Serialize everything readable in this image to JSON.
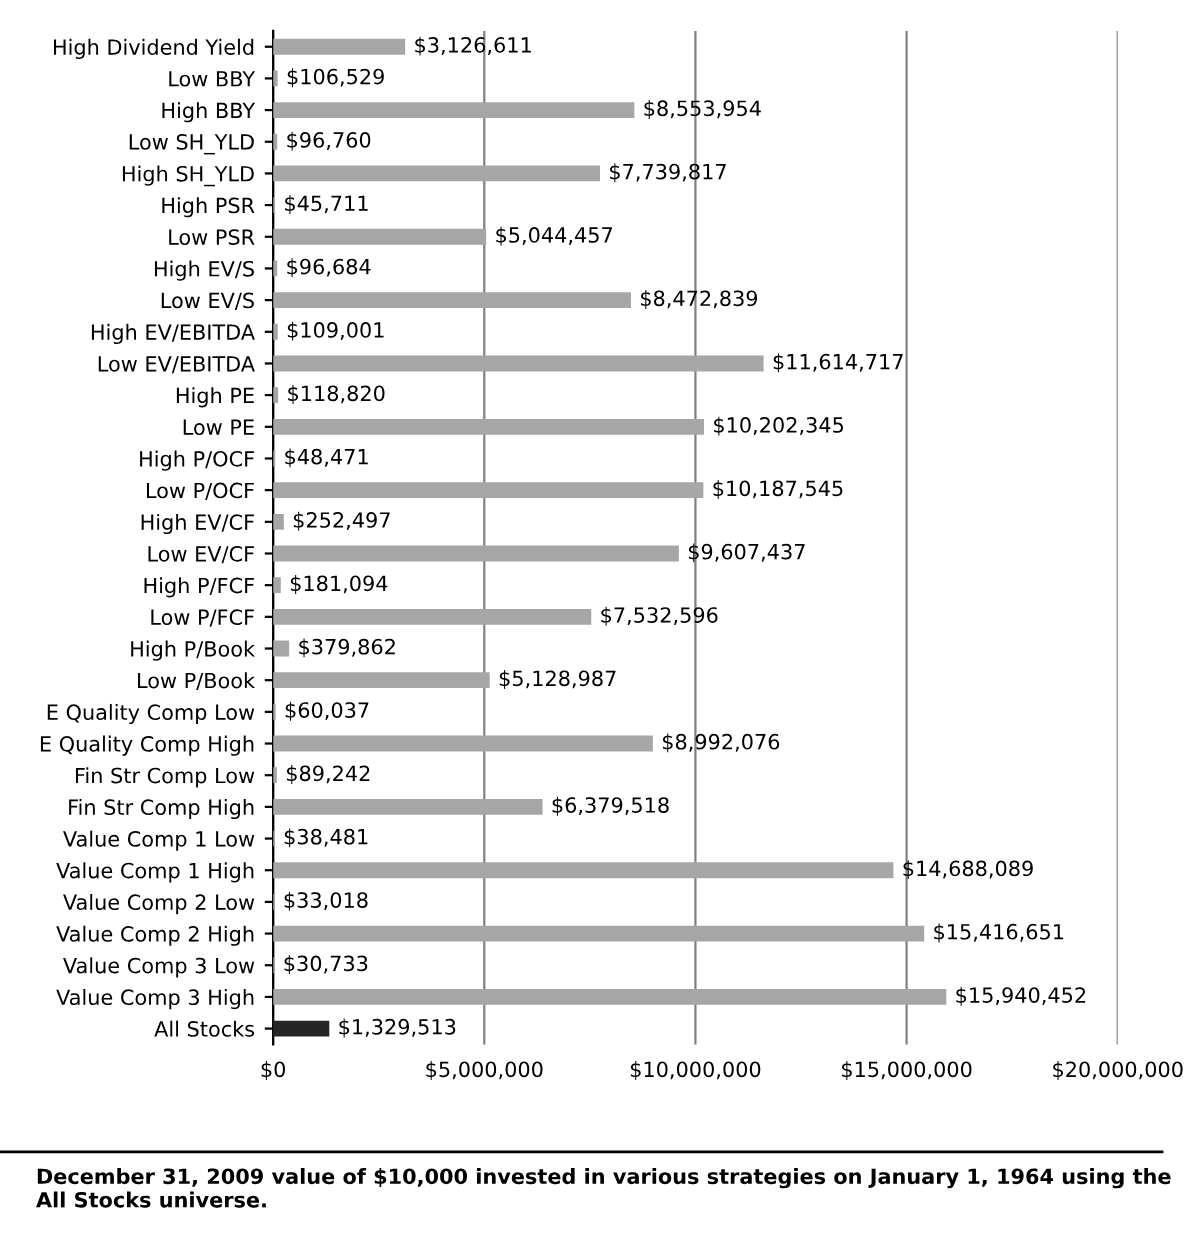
{
  "chart_data": {
    "type": "bar",
    "orientation": "horizontal",
    "categories": [
      "High Dividend Yield",
      "Low BBY",
      "High BBY",
      "Low SH_YLD",
      "High SH_YLD",
      "High PSR",
      "Low PSR",
      "High EV/S",
      "Low EV/S",
      "High EV/EBITDA",
      "Low EV/EBITDA",
      "High PE",
      "Low PE",
      "High P/OCF",
      "Low P/OCF",
      "High EV/CF",
      "Low EV/CF",
      "High P/FCF",
      "Low P/FCF",
      "High P/Book",
      "Low P/Book",
      "E Quality Comp Low",
      "E Quality Comp High",
      "Fin Str Comp Low",
      "Fin Str Comp High",
      "Value Comp 1 Low",
      "Value Comp 1 High",
      "Value Comp 2 Low",
      "Value Comp 2 High",
      "Value Comp 3 Low",
      "Value Comp 3 High",
      "All Stocks"
    ],
    "values": [
      3126611,
      106529,
      8553954,
      96760,
      7739817,
      45711,
      5044457,
      96684,
      8472839,
      109001,
      11614717,
      118820,
      10202345,
      48471,
      10187545,
      252497,
      9607437,
      181094,
      7532596,
      379862,
      5128987,
      60037,
      8992076,
      89242,
      6379518,
      38481,
      14688089,
      33018,
      15416651,
      30733,
      15940452,
      1329513
    ],
    "colors": [
      "#a6a6a6",
      "#a6a6a6",
      "#a6a6a6",
      "#a6a6a6",
      "#a6a6a6",
      "#a6a6a6",
      "#a6a6a6",
      "#a6a6a6",
      "#a6a6a6",
      "#a6a6a6",
      "#a6a6a6",
      "#a6a6a6",
      "#a6a6a6",
      "#a6a6a6",
      "#a6a6a6",
      "#a6a6a6",
      "#a6a6a6",
      "#a6a6a6",
      "#a6a6a6",
      "#a6a6a6",
      "#a6a6a6",
      "#a6a6a6",
      "#a6a6a6",
      "#a6a6a6",
      "#a6a6a6",
      "#a6a6a6",
      "#a6a6a6",
      "#a6a6a6",
      "#a6a6a6",
      "#a6a6a6",
      "#a6a6a6",
      "#262626"
    ],
    "value_labels": [
      "$3,126,611",
      "$106,529",
      "$8,553,954",
      "$96,760",
      "$7,739,817",
      "$45,711",
      "$5,044,457",
      "$96,684",
      "$8,472,839",
      "$109,001",
      "$11,614,717",
      "$118,820",
      "$10,202,345",
      "$48,471",
      "$10,187,545",
      "$252,497",
      "$9,607,437",
      "$181,094",
      "$7,532,596",
      "$379,862",
      "$5,128,987",
      "$60,037",
      "$8,992,076",
      "$89,242",
      "$6,379,518",
      "$38,481",
      "$14,688,089",
      "$33,018",
      "$15,416,651",
      "$30,733",
      "$15,940,452",
      "$1,329,513"
    ],
    "xlim": [
      0,
      20000000
    ],
    "xticks": [
      {
        "value": 0,
        "label": "$0"
      },
      {
        "value": 5000000,
        "label": "$5,000,000"
      },
      {
        "value": 10000000,
        "label": "$10,000,000"
      },
      {
        "value": 15000000,
        "label": "$15,000,000"
      },
      {
        "value": 20000000,
        "label": "$20,000,000"
      }
    ],
    "grid": "x",
    "legend": false,
    "annotations": [
      "December 31, 2009 value of $10,000 invested in various strategies on January 1, 1964 using the All Stocks universe."
    ]
  }
}
